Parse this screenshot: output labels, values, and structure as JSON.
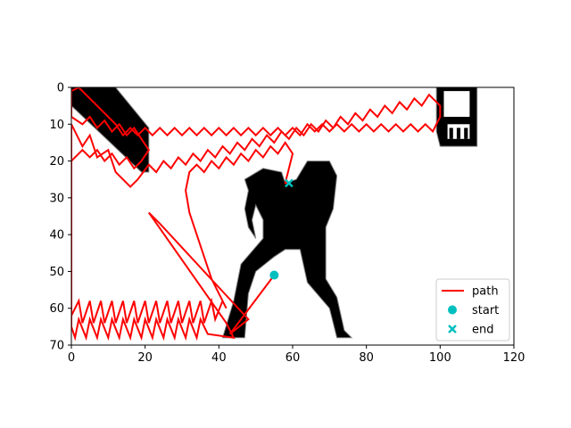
{
  "chart_data": {
    "type": "path-planning-map",
    "x_ticks": [
      "0",
      "20",
      "40",
      "60",
      "80",
      "100",
      "120"
    ],
    "y_ticks": [
      "0",
      "10",
      "20",
      "30",
      "40",
      "50",
      "60",
      "70"
    ],
    "xlim": [
      0,
      120
    ],
    "ylim": [
      70,
      0
    ],
    "y_inverted": true,
    "grid": false,
    "legend_position": "lower right",
    "colors": {
      "path": "#ff0000",
      "marker": "#00bfbf",
      "obstacle": "#000000",
      "obstacle_edge": "#808080"
    },
    "legend": [
      {
        "label": "path",
        "marker": "line"
      },
      {
        "label": "start",
        "marker": "circle"
      },
      {
        "label": "end",
        "marker": "x"
      }
    ],
    "start": {
      "x": 55,
      "y": 51
    },
    "end": {
      "x": 59,
      "y": 26
    },
    "obstacles": [
      {
        "name": "diagonal-wall",
        "points": [
          [
            0,
            0
          ],
          [
            12,
            0
          ],
          [
            21,
            11
          ],
          [
            21,
            23
          ],
          [
            19,
            23
          ],
          [
            0,
            5
          ]
        ]
      },
      {
        "name": "person-silhouette",
        "points": [
          [
            47,
            25
          ],
          [
            52,
            22
          ],
          [
            57,
            23
          ],
          [
            58,
            26
          ],
          [
            61,
            25
          ],
          [
            64,
            20
          ],
          [
            70,
            20
          ],
          [
            72,
            24
          ],
          [
            71,
            33
          ],
          [
            69,
            38
          ],
          [
            69,
            52
          ],
          [
            72,
            57
          ],
          [
            74,
            66
          ],
          [
            76,
            68
          ],
          [
            72,
            68
          ],
          [
            70,
            60
          ],
          [
            64,
            53
          ],
          [
            62,
            44
          ],
          [
            58,
            44
          ],
          [
            55,
            46
          ],
          [
            50,
            50
          ],
          [
            48,
            56
          ],
          [
            47,
            68
          ],
          [
            41,
            68
          ],
          [
            44,
            58
          ],
          [
            46,
            48
          ],
          [
            52,
            41
          ],
          [
            52,
            36
          ],
          [
            50,
            32
          ],
          [
            49,
            36
          ],
          [
            50,
            41
          ],
          [
            48,
            38
          ],
          [
            47,
            33
          ],
          [
            48,
            28
          ]
        ]
      },
      {
        "name": "corner-sign",
        "points": [
          [
            99,
            0
          ],
          [
            110,
            0
          ],
          [
            110,
            16
          ],
          [
            100,
            16
          ],
          [
            99,
            12
          ]
        ]
      }
    ],
    "path": [
      [
        55,
        51
      ],
      [
        43,
        67
      ],
      [
        48,
        63
      ],
      [
        24,
        37
      ],
      [
        21,
        34
      ],
      [
        42,
        64
      ],
      [
        44,
        68
      ],
      [
        37,
        67
      ],
      [
        35,
        63
      ],
      [
        34,
        68
      ],
      [
        32,
        63
      ],
      [
        31,
        68
      ],
      [
        29,
        63
      ],
      [
        28,
        68
      ],
      [
        26,
        63
      ],
      [
        25,
        68
      ],
      [
        23,
        63
      ],
      [
        22,
        68
      ],
      [
        20,
        63
      ],
      [
        19,
        68
      ],
      [
        17,
        63
      ],
      [
        16,
        68
      ],
      [
        14,
        63
      ],
      [
        13,
        68
      ],
      [
        11,
        63
      ],
      [
        10,
        68
      ],
      [
        8,
        63
      ],
      [
        7,
        68
      ],
      [
        5,
        63
      ],
      [
        4,
        68
      ],
      [
        2,
        63
      ],
      [
        1,
        68
      ],
      [
        0,
        65
      ],
      [
        0,
        10
      ],
      [
        3,
        16
      ],
      [
        5,
        13
      ],
      [
        7,
        19
      ],
      [
        10,
        17
      ],
      [
        12,
        23
      ],
      [
        16,
        27
      ],
      [
        18,
        25
      ],
      [
        21,
        21
      ],
      [
        23,
        23
      ],
      [
        25,
        20
      ],
      [
        27,
        22
      ],
      [
        29,
        19
      ],
      [
        31,
        21
      ],
      [
        33,
        18
      ],
      [
        35,
        20
      ],
      [
        37,
        17
      ],
      [
        39,
        19
      ],
      [
        41,
        16
      ],
      [
        43,
        18
      ],
      [
        45,
        15
      ],
      [
        47,
        17
      ],
      [
        49,
        14
      ],
      [
        51,
        16
      ],
      [
        53,
        13
      ],
      [
        55,
        15
      ],
      [
        57,
        12
      ],
      [
        59,
        14
      ],
      [
        61,
        11
      ],
      [
        63,
        13
      ],
      [
        65,
        10
      ],
      [
        67,
        12
      ],
      [
        69,
        9
      ],
      [
        71,
        11
      ],
      [
        73,
        8
      ],
      [
        75,
        10
      ],
      [
        77,
        7
      ],
      [
        79,
        9
      ],
      [
        81,
        6
      ],
      [
        83,
        8
      ],
      [
        85,
        5
      ],
      [
        87,
        7
      ],
      [
        89,
        4
      ],
      [
        91,
        6
      ],
      [
        93,
        3
      ],
      [
        95,
        5
      ],
      [
        97,
        2
      ],
      [
        100,
        5
      ],
      [
        100,
        8
      ],
      [
        98,
        12
      ],
      [
        96,
        10
      ],
      [
        94,
        12
      ],
      [
        92,
        10
      ],
      [
        90,
        12
      ],
      [
        88,
        10
      ],
      [
        86,
        12
      ],
      [
        84,
        10
      ],
      [
        82,
        12
      ],
      [
        80,
        10
      ],
      [
        78,
        12
      ],
      [
        76,
        10
      ],
      [
        74,
        12
      ],
      [
        72,
        10
      ],
      [
        70,
        12
      ],
      [
        68,
        10
      ],
      [
        66,
        12
      ],
      [
        64,
        10
      ],
      [
        62,
        13
      ],
      [
        60,
        11
      ],
      [
        58,
        13
      ],
      [
        56,
        11
      ],
      [
        54,
        13
      ],
      [
        52,
        11
      ],
      [
        50,
        13
      ],
      [
        48,
        11
      ],
      [
        46,
        13
      ],
      [
        44,
        11
      ],
      [
        42,
        13
      ],
      [
        40,
        11
      ],
      [
        38,
        13
      ],
      [
        36,
        11
      ],
      [
        34,
        13
      ],
      [
        32,
        11
      ],
      [
        30,
        13
      ],
      [
        28,
        11
      ],
      [
        26,
        13
      ],
      [
        24,
        11
      ],
      [
        22,
        13
      ],
      [
        20,
        11
      ],
      [
        18,
        13
      ],
      [
        16,
        11
      ],
      [
        14,
        13
      ],
      [
        12,
        10
      ],
      [
        10,
        8
      ],
      [
        8,
        6
      ],
      [
        6,
        4
      ],
      [
        4,
        2
      ],
      [
        2,
        0
      ],
      [
        0,
        1
      ],
      [
        0,
        8
      ],
      [
        3,
        10
      ],
      [
        5,
        8
      ],
      [
        7,
        11
      ],
      [
        9,
        9
      ],
      [
        11,
        12
      ],
      [
        13,
        10
      ],
      [
        15,
        13
      ],
      [
        17,
        11
      ],
      [
        19,
        14
      ],
      [
        21,
        17
      ],
      [
        19,
        20
      ],
      [
        17,
        22
      ],
      [
        15,
        19
      ],
      [
        13,
        21
      ],
      [
        11,
        18
      ],
      [
        9,
        20
      ],
      [
        7,
        17
      ],
      [
        5,
        19
      ],
      [
        3,
        17
      ],
      [
        1,
        19
      ],
      [
        0,
        20
      ],
      [
        0,
        62
      ],
      [
        2,
        58
      ],
      [
        3,
        64
      ],
      [
        5,
        58
      ],
      [
        6,
        64
      ],
      [
        8,
        58
      ],
      [
        9,
        64
      ],
      [
        11,
        58
      ],
      [
        12,
        64
      ],
      [
        14,
        58
      ],
      [
        15,
        64
      ],
      [
        17,
        58
      ],
      [
        18,
        64
      ],
      [
        20,
        58
      ],
      [
        21,
        64
      ],
      [
        23,
        58
      ],
      [
        24,
        64
      ],
      [
        26,
        58
      ],
      [
        27,
        64
      ],
      [
        29,
        58
      ],
      [
        30,
        64
      ],
      [
        32,
        58
      ],
      [
        33,
        64
      ],
      [
        35,
        58
      ],
      [
        36,
        64
      ],
      [
        38,
        58
      ],
      [
        39,
        63
      ],
      [
        41,
        58
      ],
      [
        42,
        60
      ],
      [
        38,
        52
      ],
      [
        36,
        46
      ],
      [
        34,
        40
      ],
      [
        32,
        34
      ],
      [
        31,
        28
      ],
      [
        32,
        23
      ],
      [
        34,
        21
      ],
      [
        36,
        23
      ],
      [
        38,
        20
      ],
      [
        40,
        22
      ],
      [
        42,
        19
      ],
      [
        44,
        21
      ],
      [
        46,
        18
      ],
      [
        48,
        20
      ],
      [
        50,
        17
      ],
      [
        52,
        19
      ],
      [
        54,
        16
      ],
      [
        56,
        18
      ],
      [
        58,
        15
      ],
      [
        60,
        18
      ],
      [
        59,
        22
      ],
      [
        58,
        26
      ],
      [
        59,
        26
      ]
    ]
  }
}
